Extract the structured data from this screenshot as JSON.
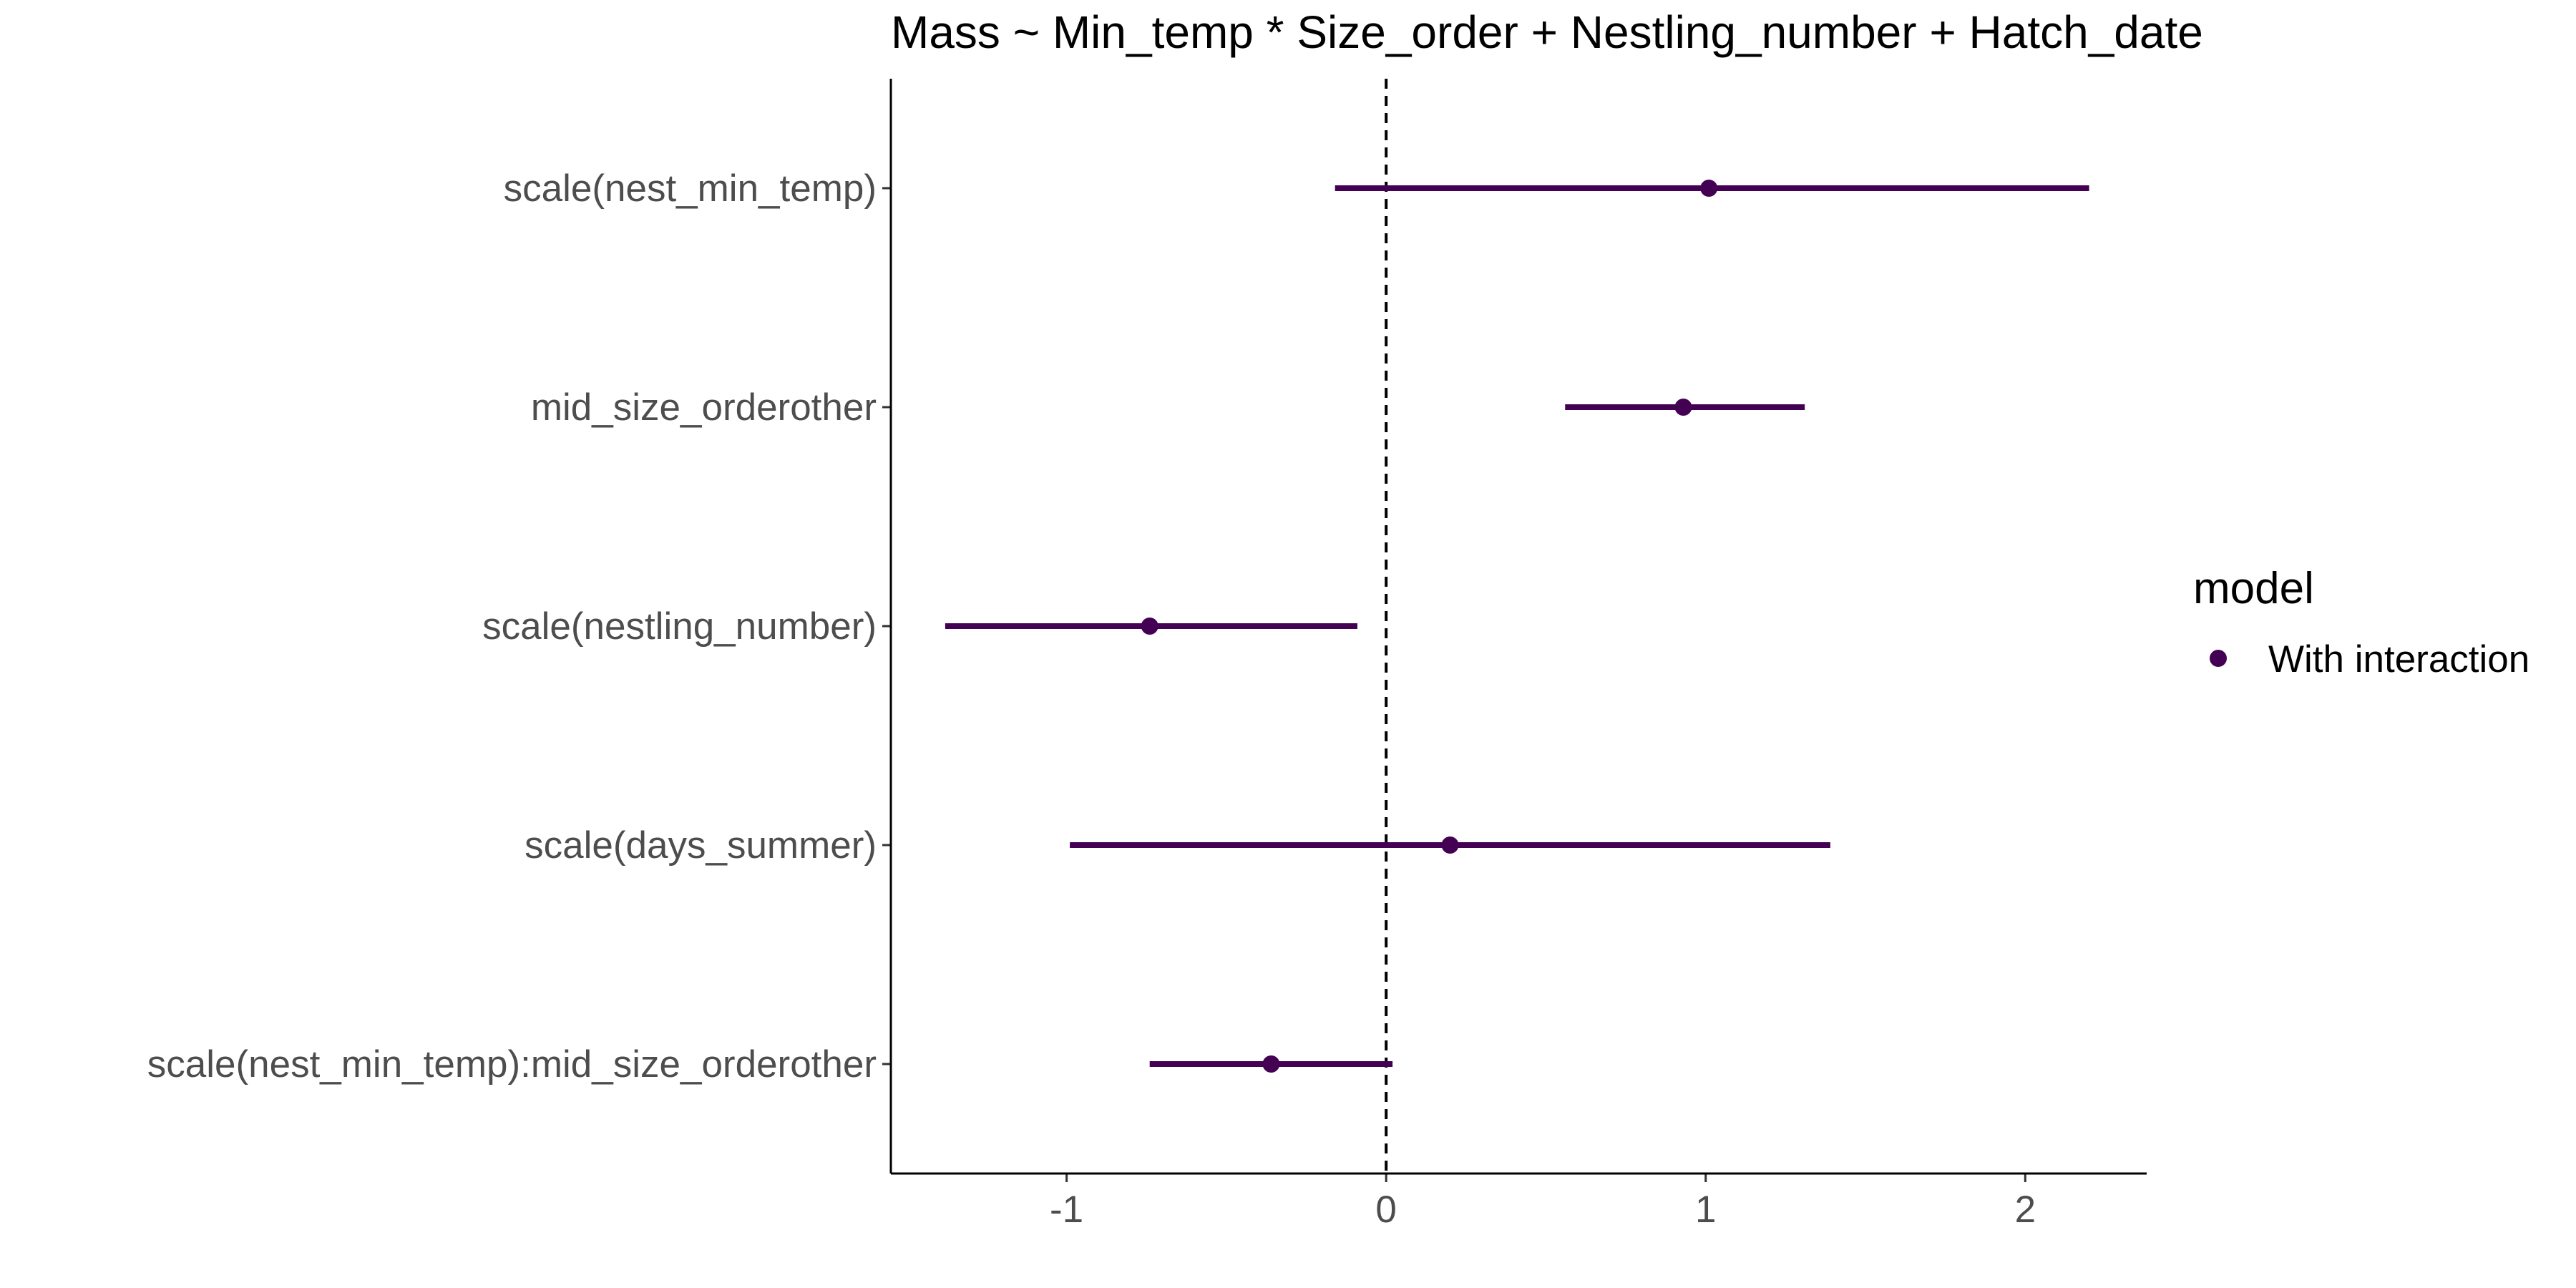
{
  "chart_data": {
    "type": "scatter",
    "subtype": "coefficient-plot",
    "title": "Mass ~ Min_temp * Size_order + Nestling_number + Hatch_date",
    "xlabel": "",
    "ylabel": "",
    "xlim": [
      -1.55,
      2.38
    ],
    "x_ticks": [
      -1,
      0,
      1,
      2
    ],
    "x_tick_labels": [
      "-1",
      "0",
      "1",
      "2"
    ],
    "reference_line": {
      "x": 0,
      "style": "dashed"
    },
    "grid": false,
    "legend": {
      "title": "model",
      "placement": "right",
      "entries": [
        {
          "label": "With interaction",
          "color": "#440154"
        }
      ]
    },
    "series": [
      {
        "name": "With interaction",
        "color": "#440154",
        "points": [
          {
            "term": "scale(nest_min_temp)",
            "estimate": 1.01,
            "low": -0.16,
            "high": 2.2
          },
          {
            "term": "mid_size_orderother",
            "estimate": 0.93,
            "low": 0.56,
            "high": 1.31
          },
          {
            "term": "scale(nestling_number)",
            "estimate": -0.74,
            "low": -1.38,
            "high": -0.09
          },
          {
            "term": "scale(days_summer)",
            "estimate": 0.2,
            "low": -0.99,
            "high": 1.39
          },
          {
            "term": "scale(nest_min_temp):mid_size_orderother",
            "estimate": -0.36,
            "low": -0.74,
            "high": 0.02
          }
        ]
      }
    ]
  }
}
